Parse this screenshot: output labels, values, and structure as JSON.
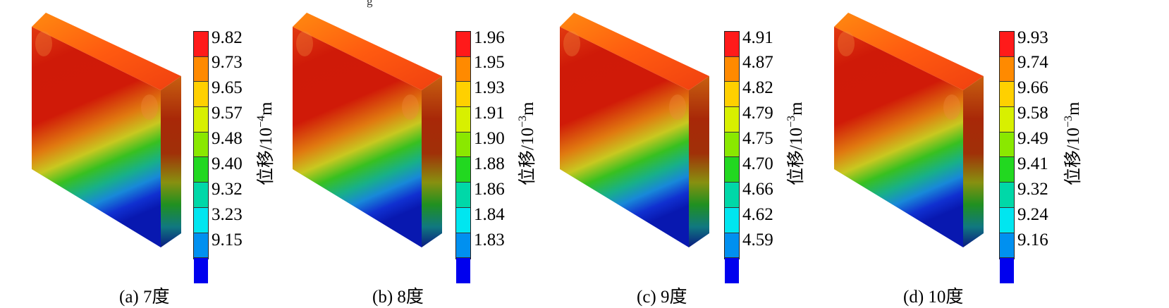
{
  "panels": [
    {
      "caption": "(a)  7度",
      "unit_prefix": "位移/10",
      "unit_exp": "−4",
      "unit_suffix": "m",
      "ticks": [
        "9.82",
        "9.73",
        "9.65",
        "9.57",
        "9.48",
        "9.40",
        "9.32",
        "3.23",
        "9.15"
      ]
    },
    {
      "caption": "(b)  8度",
      "unit_prefix": "位移/10",
      "unit_exp": "−3",
      "unit_suffix": "m",
      "ticks": [
        "1.96",
        "1.95",
        "1.93",
        "1.91",
        "1.90",
        "1.88",
        "1.86",
        "1.84",
        "1.83"
      ]
    },
    {
      "caption": "(c) 9度",
      "unit_prefix": "位移/10",
      "unit_exp": "−3",
      "unit_suffix": "m",
      "ticks": [
        "4.91",
        "4.87",
        "4.82",
        "4.79",
        "4.75",
        "4.70",
        "4.66",
        "4.62",
        "4.59"
      ]
    },
    {
      "caption": "(d) 10度",
      "unit_prefix": "位移/10",
      "unit_exp": "−3",
      "unit_suffix": "m",
      "ticks": [
        "9.93",
        "9.74",
        "9.66",
        "9.58",
        "9.49",
        "9.41",
        "9.32",
        "9.24",
        "9.16"
      ]
    }
  ],
  "colorbar_colors": [
    "#ff1a1a",
    "#ff8a00",
    "#ffd000",
    "#d8f000",
    "#8ae800",
    "#22d820",
    "#00d8a8",
    "#00e6f0",
    "#0090f0",
    "#0000ee"
  ]
}
